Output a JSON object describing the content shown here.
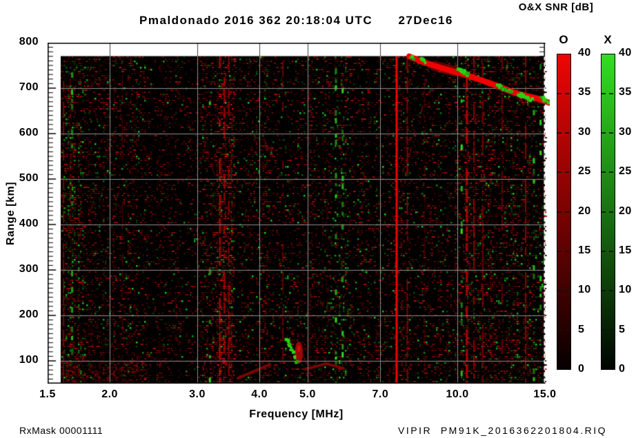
{
  "header": {
    "title": "Pmaldonado 2016 362 20:18:04 UTC      27Dec16"
  },
  "footer": {
    "rx_mask": "RxMask 00001111",
    "file_name": "VIPIR  PM91K_2016362201804.RIQ"
  },
  "colorbar_panel": {
    "title": "O&X SNR [dB]",
    "tick_values": [
      0,
      5,
      10,
      15,
      20,
      25,
      30,
      35,
      40
    ],
    "dash_values": [
      5,
      10,
      15,
      20,
      25,
      30,
      35
    ],
    "bars": [
      {
        "label": "O",
        "top_color": "#ee0505",
        "bottom_color": "#060000"
      },
      {
        "label": "X",
        "top_color": "#33dd22",
        "bottom_color": "#000500"
      }
    ]
  },
  "chart_data": {
    "type": "heatmap",
    "title": "Pmaldonado 2016 362 20:18:04 UTC 27Dec16",
    "xlabel": "Frequency [MHz]",
    "ylabel": "Range [km]",
    "x_scale": "log",
    "xlim": [
      1.5,
      15.0
    ],
    "ylim": [
      50,
      800
    ],
    "x_ticks": [
      "1.5",
      "2.0",
      "3.0",
      "4.0",
      "5.0",
      "7.0",
      "10.0",
      "15.0"
    ],
    "x_tick_values": [
      1.5,
      2.0,
      3.0,
      4.0,
      5.0,
      7.0,
      10.0,
      15.0
    ],
    "x_grid_values": [
      2,
      3,
      4,
      5,
      7,
      10
    ],
    "y_tick_values": [
      100,
      200,
      300,
      400,
      500,
      600,
      700,
      800
    ],
    "y_minor_step": 10,
    "colorbar_label": "O&X SNR [dB]",
    "colorbar_range": [
      0,
      40
    ],
    "data_extent": {
      "freq_mhz": [
        1.6,
        15.0
      ],
      "range_km": [
        50,
        770
      ]
    },
    "background": "#000000",
    "grid_color": "#8f8f8f",
    "grid_color_on_white": "#3f3f3f",
    "noise_seed": 1337,
    "noise_bands": [
      {
        "f0": 1.6,
        "f1": 1.78,
        "red": 0.42,
        "green": 0.15,
        "bright": 0.45
      },
      {
        "f0": 1.78,
        "f1": 2.0,
        "red": 0.3,
        "green": 0.05,
        "bright": 0.3
      },
      {
        "f0": 2.0,
        "f1": 2.35,
        "red": 0.34,
        "green": 0.04,
        "bright": 0.4
      },
      {
        "f0": 2.35,
        "f1": 3.05,
        "red": 0.24,
        "green": 0.03,
        "bright": 0.3
      },
      {
        "f0": 3.05,
        "f1": 3.3,
        "red": 0.42,
        "green": 0.05,
        "bright": 0.45
      },
      {
        "f0": 3.3,
        "f1": 3.56,
        "red": 0.55,
        "green": 0.08,
        "bright": 0.7
      },
      {
        "f0": 3.56,
        "f1": 3.75,
        "red": 0.2,
        "green": 0.03,
        "bright": 0.25
      },
      {
        "f0": 3.75,
        "f1": 4.9,
        "red": 0.32,
        "green": 0.05,
        "bright": 0.4
      },
      {
        "f0": 4.9,
        "f1": 5.55,
        "red": 0.3,
        "green": 0.05,
        "bright": 0.35
      },
      {
        "f0": 5.55,
        "f1": 6.0,
        "red": 0.26,
        "green": 0.13,
        "bright": 0.35
      },
      {
        "f0": 6.0,
        "f1": 7.4,
        "red": 0.26,
        "green": 0.04,
        "bright": 0.35
      },
      {
        "f0": 7.4,
        "f1": 7.8,
        "red": 0.4,
        "green": 0.04,
        "bright": 0.45
      },
      {
        "f0": 7.8,
        "f1": 8.6,
        "red": 0.3,
        "green": 0.05,
        "bright": 0.35
      },
      {
        "f0": 8.6,
        "f1": 9.8,
        "red": 0.26,
        "green": 0.05,
        "bright": 0.35
      },
      {
        "f0": 9.8,
        "f1": 11.8,
        "red": 0.4,
        "green": 0.07,
        "bright": 0.5
      },
      {
        "f0": 11.8,
        "f1": 12.6,
        "red": 0.32,
        "green": 0.05,
        "bright": 0.4
      },
      {
        "f0": 12.6,
        "f1": 15.01,
        "red": 0.34,
        "green": 0.09,
        "bright": 0.4
      }
    ],
    "rfi_lines": [
      {
        "freq": 1.615,
        "width": 2,
        "color": "#7a0303",
        "patchy": 0.7
      },
      {
        "freq": 2.12,
        "width": 1,
        "color": "#5c0202",
        "patchy": 0.6
      },
      {
        "freq": 3.33,
        "width": 2,
        "color": "#c80606",
        "patchy": 0.55
      },
      {
        "freq": 3.4,
        "width": 2,
        "color": "#a00404",
        "patchy": 0.5
      },
      {
        "freq": 3.47,
        "width": 2,
        "color": "#8c0303",
        "patchy": 0.5
      },
      {
        "freq": 4.46,
        "width": 2,
        "color": "#6a0202",
        "patchy": 0.5
      },
      {
        "freq": 5.05,
        "width": 1,
        "color": "#560202",
        "patchy": 0.5
      },
      {
        "freq": 7.55,
        "width": 3,
        "color": "#ee0404",
        "patchy": 0,
        "bright": true
      },
      {
        "freq": 7.93,
        "width": 2,
        "color": "#7e0202",
        "patchy": 0.85
      },
      {
        "freq": 8.6,
        "width": 1,
        "color": "#500202",
        "patchy": 0.45
      },
      {
        "freq": 10.45,
        "width": 3,
        "color": "#a80404",
        "patchy": 0.8
      },
      {
        "freq": 10.8,
        "width": 2,
        "color": "#8e0303",
        "patchy": 0.7
      },
      {
        "freq": 11.25,
        "width": 2,
        "color": "#700202",
        "patchy": 0.6
      },
      {
        "freq": 12.3,
        "width": 2,
        "color": "#640202",
        "patchy": 0.55
      },
      {
        "freq": 13.72,
        "width": 2,
        "color": "#900303",
        "patchy": 0.75
      }
    ],
    "green_columns": [
      {
        "freq": 1.68,
        "density": 0.3
      },
      {
        "freq": 3.18,
        "density": 0.16
      },
      {
        "freq": 5.7,
        "density": 0.42
      },
      {
        "freq": 5.88,
        "density": 0.28
      },
      {
        "freq": 10.2,
        "density": 0.18
      },
      {
        "freq": 14.25,
        "density": 0.22
      },
      {
        "freq": 14.7,
        "density": 0.16
      }
    ],
    "bottom_echoes": {
      "strokes": [
        {
          "points": [
            [
              3.62,
              62
            ],
            [
              4.2,
              92
            ]
          ],
          "width": 4,
          "color": "#7c0404"
        },
        {
          "points": [
            [
              4.95,
              82
            ],
            [
              5.45,
              94
            ],
            [
              5.9,
              84
            ]
          ],
          "width": 4,
          "color": "#7a0404"
        }
      ],
      "blob": {
        "freq": 4.8,
        "range": 118,
        "rx": 6,
        "ry": 16,
        "color": "#9c0606"
      },
      "green_cluster": {
        "f0": 4.55,
        "f1": 4.75,
        "r0": 150,
        "r1": 95,
        "count": 16
      },
      "haze": {
        "f0": 1.6,
        "f1": 2.35,
        "r0": 50,
        "r1": 100,
        "density": 0.45
      }
    },
    "oblique_trace": {
      "color": "#ee0303",
      "width": 8.5,
      "points": [
        [
          8.0,
          770
        ],
        [
          8.5,
          758
        ],
        [
          9.25,
          745
        ],
        [
          10.55,
          727
        ],
        [
          11.75,
          709
        ],
        [
          13.1,
          689
        ],
        [
          14.5,
          677
        ],
        [
          15.3,
          668
        ]
      ],
      "diffuse": {
        "points": [
          [
            9.0,
            749
          ],
          [
            9.9,
            737
          ]
        ],
        "width": 15,
        "alpha": 0.4
      },
      "green_patches": [
        {
          "f0": 8.0,
          "f1": 8.14,
          "r0": 772,
          "r1": 766,
          "count": 6
        },
        {
          "f0": 8.42,
          "f1": 8.6,
          "r0": 764,
          "r1": 757,
          "count": 10
        },
        {
          "f0": 9.95,
          "f1": 10.55,
          "r0": 745,
          "r1": 731,
          "count": 22
        },
        {
          "f0": 12.05,
          "f1": 12.8,
          "r0": 706,
          "r1": 692,
          "count": 18
        },
        {
          "f0": 13.3,
          "f1": 14.1,
          "r0": 687,
          "r1": 675,
          "count": 20
        },
        {
          "f0": 14.75,
          "f1": 15.25,
          "r0": 682,
          "r1": 669,
          "count": 14
        }
      ]
    }
  }
}
